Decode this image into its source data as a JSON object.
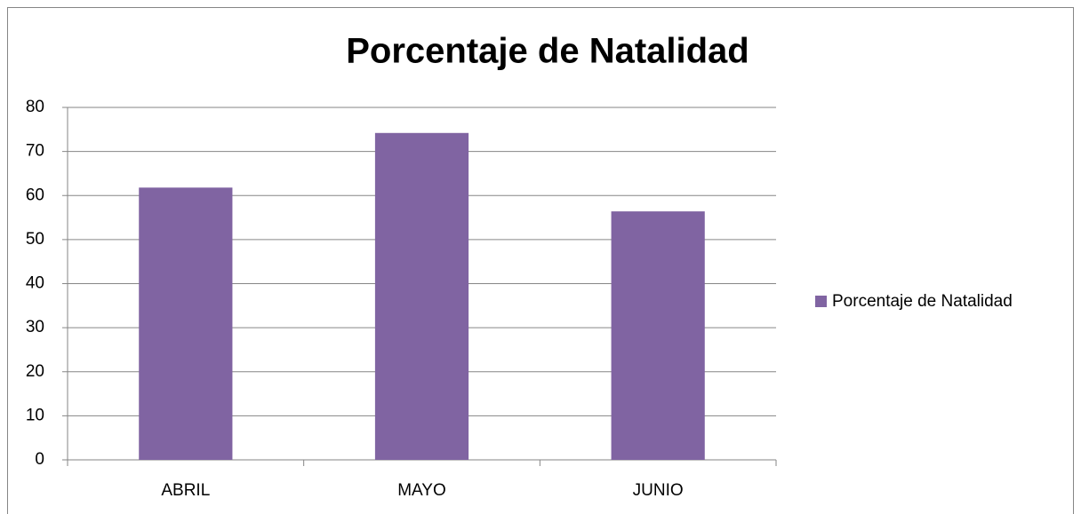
{
  "chart_data": {
    "type": "bar",
    "title": "Porcentaje de Natalidad",
    "categories": [
      "ABRIL",
      "MAYO",
      "JUNIO"
    ],
    "series": [
      {
        "name": "Porcentaje de Natalidad",
        "color": "#8064a2",
        "values": [
          61.8,
          74.2,
          56.4
        ]
      }
    ],
    "ylim": [
      0,
      80
    ],
    "yticks": [
      0,
      10,
      20,
      30,
      40,
      50,
      60,
      70,
      80
    ],
    "grid": true,
    "legend": "right"
  }
}
